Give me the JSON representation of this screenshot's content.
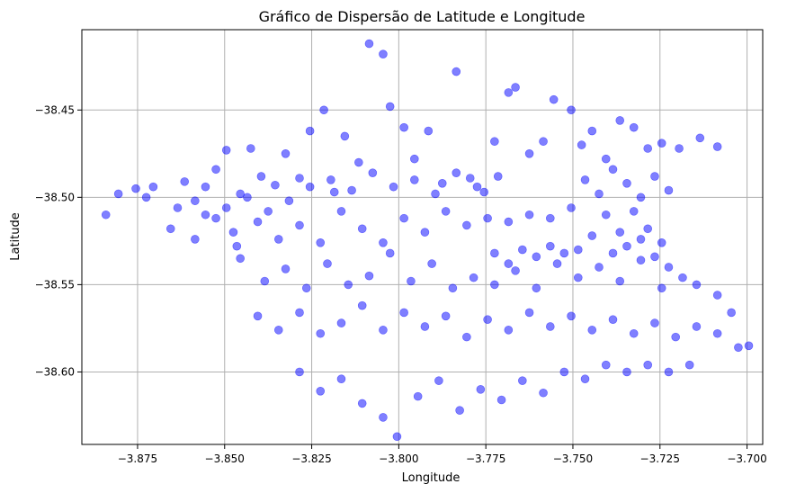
{
  "chart_data": {
    "type": "scatter",
    "title": "Gráfico de Dispersão de Latitude e Longitude",
    "xlabel": "Longitude",
    "ylabel": "Latitude",
    "xlim": [
      -3.891,
      -3.6955
    ],
    "ylim": [
      -38.6415,
      -38.404
    ],
    "x_ticks": [
      -3.875,
      -3.85,
      -3.825,
      -3.8,
      -3.775,
      -3.75,
      -3.725,
      -3.7
    ],
    "x_tick_labels": [
      "−3.875",
      "−3.850",
      "−3.825",
      "−3.800",
      "−3.775",
      "−3.750",
      "−3.725",
      "−3.700"
    ],
    "y_ticks": [
      -38.45,
      -38.5,
      -38.55,
      -38.6
    ],
    "y_tick_labels": [
      "−38.45",
      "−38.50",
      "−38.55",
      "−38.60"
    ],
    "grid": true,
    "marker_color": "#0000ff",
    "marker_alpha": 0.5,
    "points": [
      [
        -3.8841,
        -38.51
      ],
      [
        -3.8805,
        -38.498
      ],
      [
        -3.8755,
        -38.495
      ],
      [
        -3.8725,
        -38.5
      ],
      [
        -3.8705,
        -38.494
      ],
      [
        -3.8635,
        -38.506
      ],
      [
        -3.8615,
        -38.491
      ],
      [
        -3.8585,
        -38.502
      ],
      [
        -3.8555,
        -38.494
      ],
      [
        -3.8525,
        -38.484
      ],
      [
        -3.8495,
        -38.473
      ],
      [
        -3.8475,
        -38.52
      ],
      [
        -3.8455,
        -38.498
      ],
      [
        -3.8425,
        -38.472
      ],
      [
        -3.8395,
        -38.488
      ],
      [
        -3.8355,
        -38.493
      ],
      [
        -3.8325,
        -38.475
      ],
      [
        -3.8285,
        -38.489
      ],
      [
        -3.8255,
        -38.462
      ],
      [
        -3.8215,
        -38.45
      ],
      [
        -3.8185,
        -38.497
      ],
      [
        -3.8155,
        -38.465
      ],
      [
        -3.8115,
        -38.48
      ],
      [
        -3.8085,
        -38.412
      ],
      [
        -3.8045,
        -38.418
      ],
      [
        -3.8025,
        -38.448
      ],
      [
        -3.7985,
        -38.46
      ],
      [
        -3.7955,
        -38.478
      ],
      [
        -3.7915,
        -38.462
      ],
      [
        -3.7875,
        -38.492
      ],
      [
        -3.7835,
        -38.428
      ],
      [
        -3.7795,
        -38.489
      ],
      [
        -3.7755,
        -38.497
      ],
      [
        -3.7725,
        -38.468
      ],
      [
        -3.7685,
        -38.44
      ],
      [
        -3.7665,
        -38.437
      ],
      [
        -3.7625,
        -38.475
      ],
      [
        -3.7585,
        -38.468
      ],
      [
        -3.7555,
        -38.444
      ],
      [
        -3.7505,
        -38.45
      ],
      [
        -3.7475,
        -38.47
      ],
      [
        -3.7445,
        -38.462
      ],
      [
        -3.7405,
        -38.478
      ],
      [
        -3.7365,
        -38.456
      ],
      [
        -3.7325,
        -38.46
      ],
      [
        -3.7285,
        -38.472
      ],
      [
        -3.7245,
        -38.469
      ],
      [
        -3.7195,
        -38.472
      ],
      [
        -3.7135,
        -38.466
      ],
      [
        -3.7085,
        -38.471
      ],
      [
        -3.8655,
        -38.518
      ],
      [
        -3.8585,
        -38.524
      ],
      [
        -3.8525,
        -38.512
      ],
      [
        -3.8465,
        -38.528
      ],
      [
        -3.8405,
        -38.514
      ],
      [
        -3.8345,
        -38.524
      ],
      [
        -3.8285,
        -38.516
      ],
      [
        -3.8225,
        -38.526
      ],
      [
        -3.8165,
        -38.508
      ],
      [
        -3.8105,
        -38.518
      ],
      [
        -3.8045,
        -38.526
      ],
      [
        -3.7985,
        -38.512
      ],
      [
        -3.7925,
        -38.52
      ],
      [
        -3.7865,
        -38.508
      ],
      [
        -3.7805,
        -38.516
      ],
      [
        -3.7745,
        -38.512
      ],
      [
        -3.7685,
        -38.514
      ],
      [
        -3.7625,
        -38.51
      ],
      [
        -3.7565,
        -38.512
      ],
      [
        -3.7505,
        -38.506
      ],
      [
        -3.8455,
        -38.535
      ],
      [
        -3.8385,
        -38.548
      ],
      [
        -3.8325,
        -38.541
      ],
      [
        -3.8265,
        -38.552
      ],
      [
        -3.8205,
        -38.538
      ],
      [
        -3.8145,
        -38.55
      ],
      [
        -3.8085,
        -38.545
      ],
      [
        -3.8025,
        -38.532
      ],
      [
        -3.7965,
        -38.548
      ],
      [
        -3.7905,
        -38.538
      ],
      [
        -3.7845,
        -38.552
      ],
      [
        -3.7785,
        -38.546
      ],
      [
        -3.7725,
        -38.55
      ],
      [
        -3.7665,
        -38.542
      ],
      [
        -3.7605,
        -38.552
      ],
      [
        -3.7545,
        -38.538
      ],
      [
        -3.7485,
        -38.546
      ],
      [
        -3.7425,
        -38.54
      ],
      [
        -3.7365,
        -38.548
      ],
      [
        -3.7305,
        -38.536
      ],
      [
        -3.7245,
        -38.552
      ],
      [
        -3.7185,
        -38.546
      ],
      [
        -3.7145,
        -38.55
      ],
      [
        -3.7085,
        -38.556
      ],
      [
        -3.7045,
        -38.566
      ],
      [
        -3.8405,
        -38.568
      ],
      [
        -3.8345,
        -38.576
      ],
      [
        -3.8285,
        -38.566
      ],
      [
        -3.8225,
        -38.578
      ],
      [
        -3.8165,
        -38.572
      ],
      [
        -3.8105,
        -38.562
      ],
      [
        -3.8045,
        -38.576
      ],
      [
        -3.7985,
        -38.566
      ],
      [
        -3.7925,
        -38.574
      ],
      [
        -3.7865,
        -38.568
      ],
      [
        -3.7805,
        -38.58
      ],
      [
        -3.7745,
        -38.57
      ],
      [
        -3.7685,
        -38.576
      ],
      [
        -3.7625,
        -38.566
      ],
      [
        -3.7565,
        -38.574
      ],
      [
        -3.7505,
        -38.568
      ],
      [
        -3.7445,
        -38.576
      ],
      [
        -3.7385,
        -38.57
      ],
      [
        -3.7325,
        -38.578
      ],
      [
        -3.7265,
        -38.572
      ],
      [
        -3.7205,
        -38.58
      ],
      [
        -3.7145,
        -38.574
      ],
      [
        -3.7085,
        -38.578
      ],
      [
        -3.7025,
        -38.586
      ],
      [
        -3.6995,
        -38.585
      ],
      [
        -3.8285,
        -38.6
      ],
      [
        -3.8225,
        -38.611
      ],
      [
        -3.8165,
        -38.604
      ],
      [
        -3.8105,
        -38.618
      ],
      [
        -3.8045,
        -38.626
      ],
      [
        -3.8005,
        -38.637
      ],
      [
        -3.7945,
        -38.614
      ],
      [
        -3.7885,
        -38.605
      ],
      [
        -3.7825,
        -38.622
      ],
      [
        -3.7765,
        -38.61
      ],
      [
        -3.7705,
        -38.616
      ],
      [
        -3.7645,
        -38.605
      ],
      [
        -3.7585,
        -38.612
      ],
      [
        -3.7525,
        -38.6
      ],
      [
        -3.7465,
        -38.604
      ],
      [
        -3.7405,
        -38.596
      ],
      [
        -3.7345,
        -38.6
      ],
      [
        -3.7285,
        -38.596
      ],
      [
        -3.7225,
        -38.6
      ],
      [
        -3.7165,
        -38.596
      ],
      [
        -3.7465,
        -38.49
      ],
      [
        -3.7425,
        -38.498
      ],
      [
        -3.7385,
        -38.484
      ],
      [
        -3.7345,
        -38.492
      ],
      [
        -3.7305,
        -38.5
      ],
      [
        -3.7265,
        -38.488
      ],
      [
        -3.7225,
        -38.496
      ],
      [
        -3.7405,
        -38.51
      ],
      [
        -3.7365,
        -38.52
      ],
      [
        -3.7325,
        -38.508
      ],
      [
        -3.7285,
        -38.518
      ],
      [
        -3.7245,
        -38.526
      ],
      [
        -3.7445,
        -38.522
      ],
      [
        -3.7485,
        -38.53
      ],
      [
        -3.7525,
        -38.532
      ],
      [
        -3.7385,
        -38.532
      ],
      [
        -3.7345,
        -38.528
      ],
      [
        -3.7305,
        -38.524
      ],
      [
        -3.7265,
        -38.534
      ],
      [
        -3.7225,
        -38.54
      ],
      [
        -3.7565,
        -38.528
      ],
      [
        -3.7605,
        -38.534
      ],
      [
        -3.7645,
        -38.53
      ],
      [
        -3.7685,
        -38.538
      ],
      [
        -3.7725,
        -38.532
      ],
      [
        -3.8195,
        -38.49
      ],
      [
        -3.8135,
        -38.496
      ],
      [
        -3.8075,
        -38.486
      ],
      [
        -3.8015,
        -38.494
      ],
      [
        -3.7955,
        -38.49
      ],
      [
        -3.7895,
        -38.498
      ],
      [
        -3.7835,
        -38.486
      ],
      [
        -3.7775,
        -38.494
      ],
      [
        -3.7715,
        -38.488
      ],
      [
        -3.8255,
        -38.494
      ],
      [
        -3.8315,
        -38.502
      ],
      [
        -3.8375,
        -38.508
      ],
      [
        -3.8435,
        -38.5
      ],
      [
        -3.8495,
        -38.506
      ],
      [
        -3.8555,
        -38.51
      ]
    ]
  }
}
